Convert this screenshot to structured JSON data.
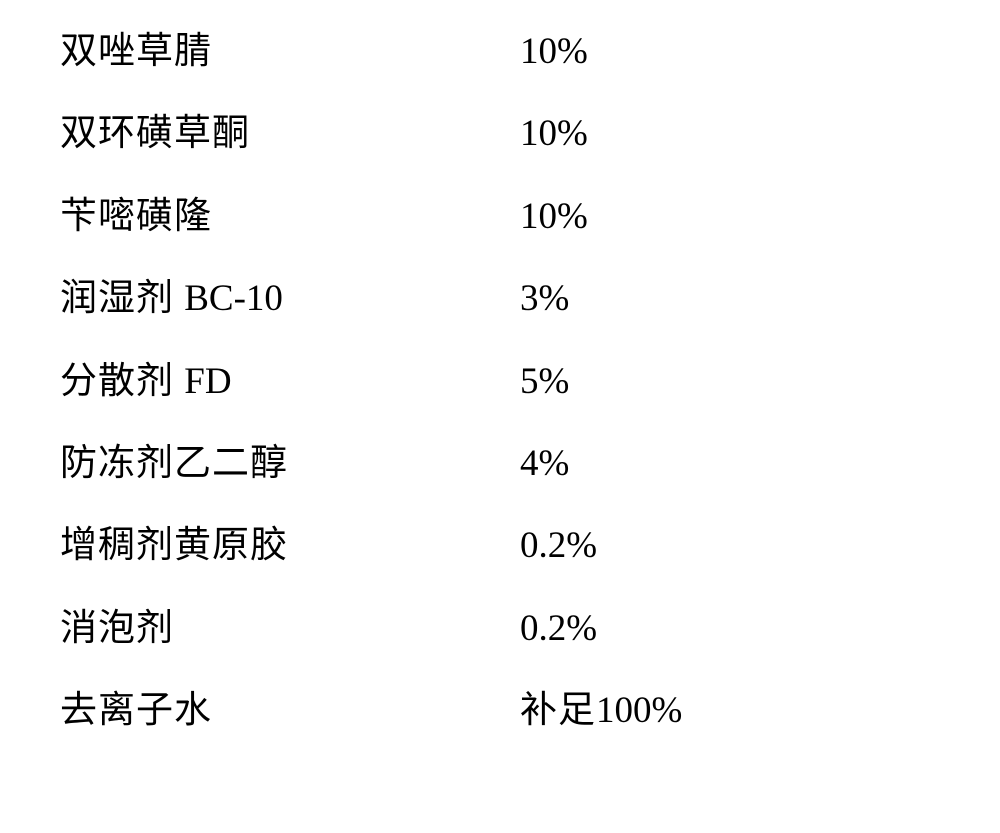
{
  "rows": [
    {
      "label": "双唑草腈",
      "value": "10%"
    },
    {
      "label": "双环磺草酮",
      "value": "10%"
    },
    {
      "label": "苄嘧磺隆",
      "value": "10%"
    },
    {
      "label_pre": "润湿剂 ",
      "label_latin": "BC-10",
      "value": "3%"
    },
    {
      "label_pre": "分散剂 ",
      "label_latin": "FD",
      "value": "5%"
    },
    {
      "label": "防冻剂乙二醇",
      "value": "4%"
    },
    {
      "label": "增稠剂黄原胶",
      "value": "0.2%"
    },
    {
      "label": "消泡剂",
      "value": "0.2%"
    },
    {
      "label": "去离子水",
      "value_pre": "补足",
      "value_latin": "100%"
    }
  ]
}
